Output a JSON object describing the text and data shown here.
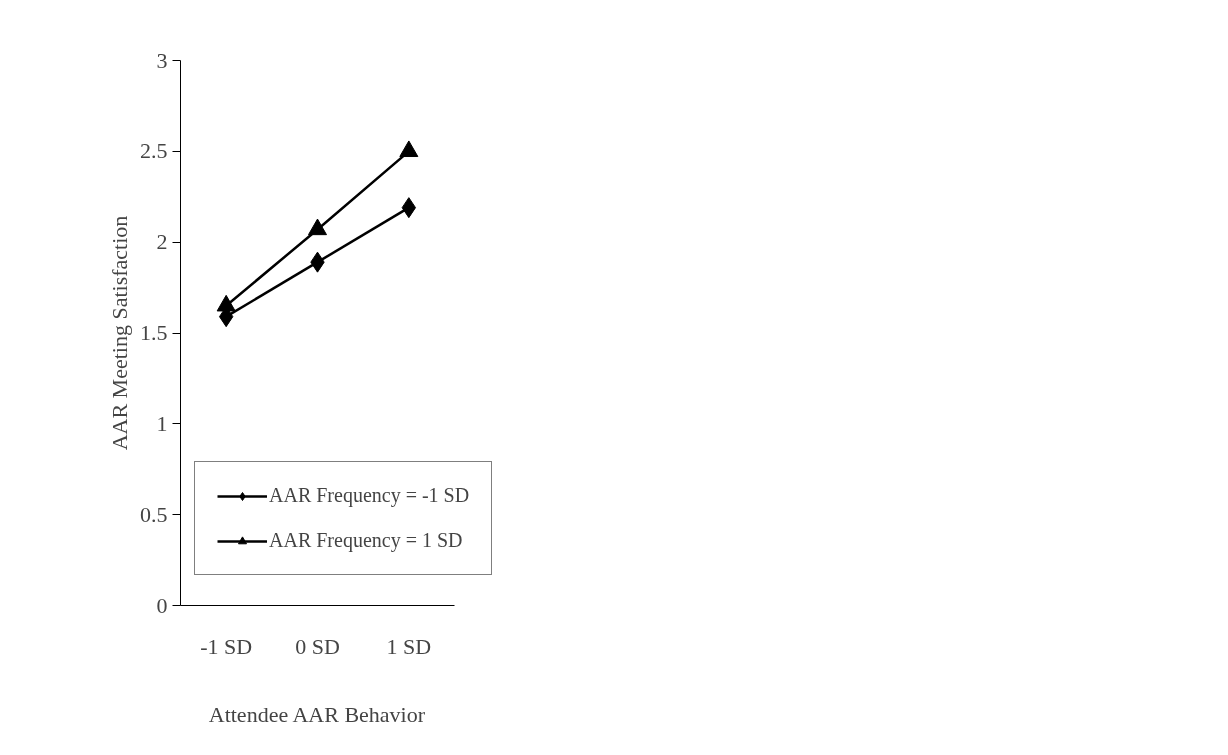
{
  "chart_data": {
    "type": "line",
    "xlabel": "Attendee AAR Behavior",
    "ylabel": "AAR Meeting Satisfaction",
    "categories": [
      "-1 SD",
      "0 SD",
      "1 SD"
    ],
    "series": [
      {
        "name": "AAR Frequency = -1 SD",
        "color": "#000000",
        "marker": "diamond",
        "values": [
          1.59,
          1.89,
          2.19
        ]
      },
      {
        "name": "AAR Frequency = 1 SD",
        "color": "#000000",
        "marker": "triangle",
        "values": [
          1.65,
          2.07,
          2.5
        ]
      }
    ],
    "ylim": [
      0,
      3
    ],
    "yticks": [
      0,
      0.5,
      1,
      1.5,
      2,
      2.5,
      3
    ],
    "grid": false,
    "legend": "right",
    "line_style": "solid"
  }
}
